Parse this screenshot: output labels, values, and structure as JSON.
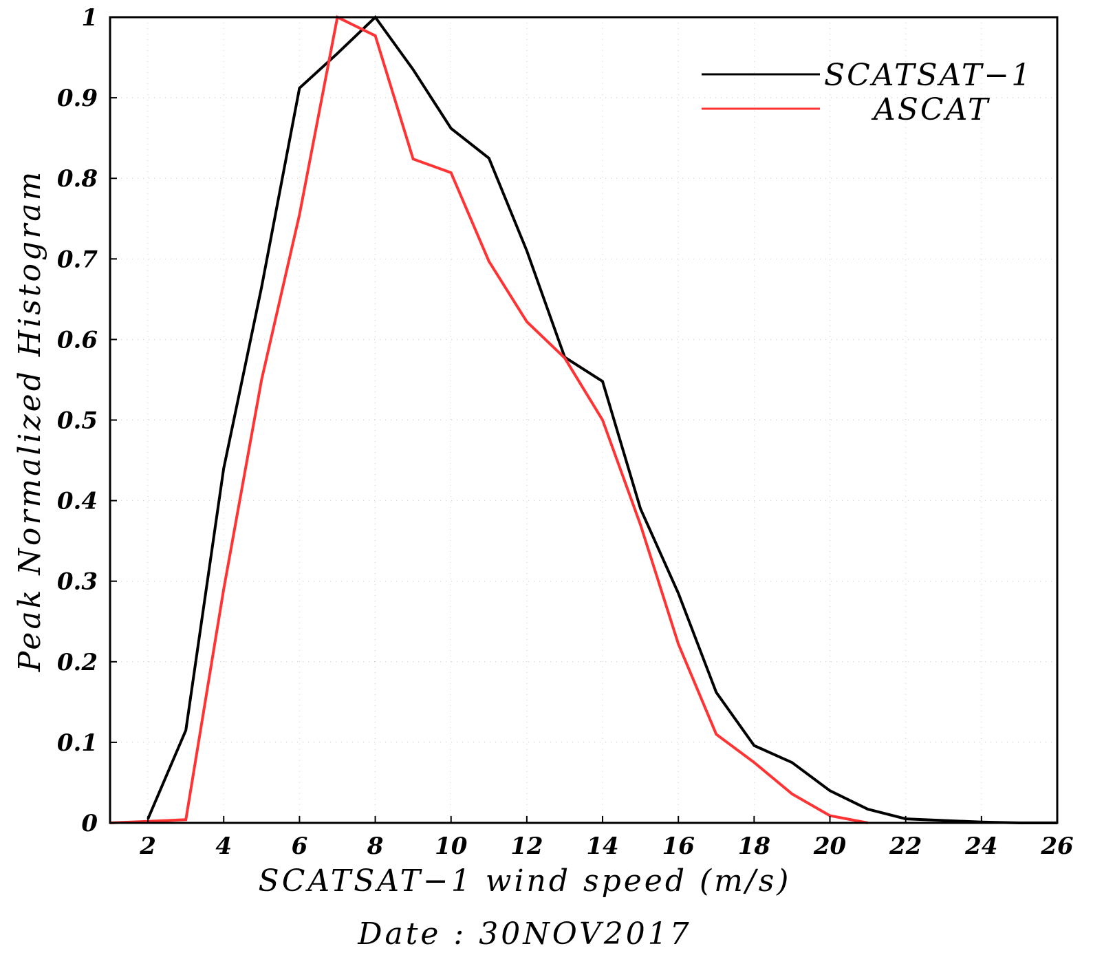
{
  "chart_data": {
    "type": "line",
    "xlabel": "SCATSAT−1 wind speed (m/s)",
    "ylabel": "Peak Normalized Histogram",
    "footer": "Date : 30NOV2017",
    "xlim": [
      1,
      26
    ],
    "ylim": [
      0,
      1
    ],
    "x_ticks": [
      2,
      4,
      6,
      8,
      10,
      12,
      14,
      16,
      18,
      20,
      22,
      24,
      26
    ],
    "y_ticks": [
      0,
      0.1,
      0.2,
      0.3,
      0.4,
      0.5,
      0.6,
      0.7,
      0.8,
      0.9,
      1
    ],
    "y_tick_labels": [
      "0",
      "0.1",
      "0.2",
      "0.3",
      "0.4",
      "0.5",
      "0.6",
      "0.7",
      "0.8",
      "0.9",
      "1"
    ],
    "grid": true,
    "legend_position": "top-right",
    "series": [
      {
        "name": "SCATSAT−1",
        "color": "#000000",
        "x": [
          2,
          3,
          4,
          5,
          6,
          7,
          8,
          9,
          10,
          11,
          12,
          13,
          14,
          15,
          16,
          17,
          18,
          19,
          20,
          21,
          22,
          23,
          24,
          25,
          26
        ],
        "y": [
          0.005,
          0.115,
          0.44,
          0.665,
          0.912,
          0.955,
          1.0,
          0.935,
          0.862,
          0.825,
          0.71,
          0.578,
          0.548,
          0.39,
          0.285,
          0.162,
          0.096,
          0.075,
          0.04,
          0.017,
          0.005,
          0.003,
          0.001,
          0.0,
          0.0
        ]
      },
      {
        "name": "ASCAT",
        "color": "#ff3333",
        "x": [
          1,
          2,
          3,
          4,
          5,
          6,
          7,
          8,
          9,
          10,
          11,
          12,
          13,
          14,
          15,
          16,
          17,
          18,
          19,
          20,
          21
        ],
        "y": [
          0.0,
          0.002,
          0.004,
          0.29,
          0.55,
          0.755,
          1.0,
          0.977,
          0.824,
          0.807,
          0.697,
          0.622,
          0.577,
          0.5,
          0.37,
          0.222,
          0.11,
          0.075,
          0.036,
          0.009,
          0.0
        ]
      }
    ]
  }
}
